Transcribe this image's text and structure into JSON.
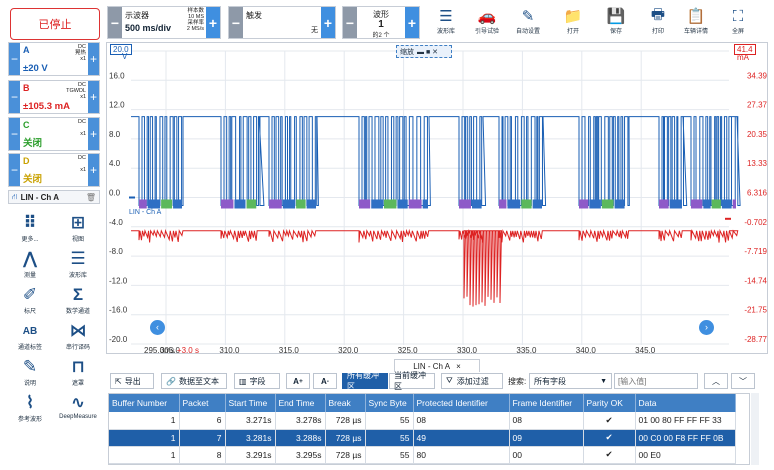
{
  "run": {
    "state_label": "已停止"
  },
  "scope": {
    "label": "示波器",
    "value": "500 ms/div",
    "sample_info": [
      "样本数",
      "10 MS",
      "采样率",
      "2 MS/s"
    ]
  },
  "trigger": {
    "label": "触发",
    "value": "无"
  },
  "waveform": {
    "label": "波形",
    "value": "1",
    "sub": "的2 个"
  },
  "toolbar": [
    {
      "label": "波形库",
      "icon": "waveform-library-icon"
    },
    {
      "label": "引导试验",
      "icon": "car-icon"
    },
    {
      "label": "自动设置",
      "icon": "wand-icon"
    },
    {
      "label": "打开",
      "icon": "folder-icon"
    },
    {
      "label": "保存",
      "icon": "save-icon"
    },
    {
      "label": "打印",
      "icon": "print-icon"
    },
    {
      "label": "车辆详情",
      "icon": "clipboard-icon"
    },
    {
      "label": "全屏",
      "icon": "fullscreen-icon"
    }
  ],
  "channels": [
    {
      "name": "A",
      "coupling": "DC",
      "probe": "晃热",
      "mult": "x1",
      "range": "±20 V",
      "color": "#1a5fb4"
    },
    {
      "name": "B",
      "coupling": "DC",
      "probe": "TGWDL",
      "mult": "x1",
      "range": "±105.3 mA",
      "color": "#d22"
    },
    {
      "name": "C",
      "coupling": "DC",
      "probe": "",
      "mult": "x1",
      "range": "关闭",
      "color": "#2a9d2a"
    },
    {
      "name": "D",
      "coupling": "DC",
      "probe": "",
      "mult": "x1",
      "range": "关闭",
      "color": "#c9a100"
    }
  ],
  "decode_label": "LIN - Ch A",
  "tools": [
    {
      "label": "更多...",
      "icon": "more-icon"
    },
    {
      "label": "视图",
      "icon": "view-grid-icon"
    },
    {
      "label": "测量",
      "icon": "measure-icon"
    },
    {
      "label": "波形库",
      "icon": "waveform-library-icon"
    },
    {
      "label": "标尺",
      "icon": "ruler-icon"
    },
    {
      "label": "数学通道",
      "icon": "sigma-icon"
    },
    {
      "label": "通道标签",
      "icon": "channel-label-icon"
    },
    {
      "label": "串行译码",
      "icon": "serial-decode-icon"
    },
    {
      "label": "说明",
      "icon": "note-icon"
    },
    {
      "label": "遮罩",
      "icon": "mask-icon"
    },
    {
      "label": "参考波形",
      "icon": "reference-icon"
    },
    {
      "label": "DeepMeasure",
      "icon": "deepmeasure-icon"
    }
  ],
  "graph": {
    "left_axis_top": "20.0",
    "left_axis_unit": "V",
    "right_axis_top": "41.4",
    "right_axis_unit": "mA",
    "left_ticks": [
      "16.0",
      "12.0",
      "8.0",
      "4.0",
      "0.0",
      "-4.0",
      "-8.0",
      "-12.0",
      "-16.0",
      "-20.0"
    ],
    "right_ticks": [
      "34.39",
      "27.37",
      "20.35",
      "13.33",
      "6.316",
      "-0.702",
      "-7.719",
      "-14.74",
      "-21.75",
      "-28.77"
    ],
    "x_ticks": [
      "305.0",
      "310.0",
      "315.0",
      "320.0",
      "325.0",
      "330.0",
      "335.0",
      "340.0",
      "345.0"
    ],
    "x_start": "295.0ms",
    "x_offset": "+3.0 s",
    "zoom_label": "缩放",
    "lin_tag": "LIN - Ch A"
  },
  "decode_tab": {
    "label": "LIN - Ch A",
    "close": "×"
  },
  "table_toolbar": {
    "export": "导出",
    "link_text": "数据至文本",
    "fields": "字段",
    "all_buffers": "所有缓冲区",
    "current_buffer": "当前缓冲区",
    "add_filter": "添加过滤",
    "search_label": "搜索:",
    "search_field": "所有字段",
    "search_placeholder": "[输入值]"
  },
  "table": {
    "columns": [
      "Buffer Number",
      "Packet",
      "Start Time",
      "End Time",
      "Break",
      "Sync Byte",
      "Protected Identifier",
      "Frame Identifier",
      "Parity OK",
      "Data"
    ],
    "rows": [
      [
        "1",
        "6",
        "3.271s",
        "3.278s",
        "728 µs",
        "55",
        "08",
        "08",
        "✔",
        "01 00 80 FF FF FF 33"
      ],
      [
        "1",
        "7",
        "3.281s",
        "3.288s",
        "728 µs",
        "55",
        "49",
        "09",
        "✔",
        "00 C0 00 F8 FF FF 0B"
      ],
      [
        "1",
        "8",
        "3.291s",
        "3.295s",
        "728 µs",
        "55",
        "80",
        "00",
        "✔",
        "00 E0"
      ]
    ]
  },
  "colors": {
    "accent": "#3f8fe0",
    "ch_a": "#1a5fb4",
    "ch_b": "#d22"
  }
}
